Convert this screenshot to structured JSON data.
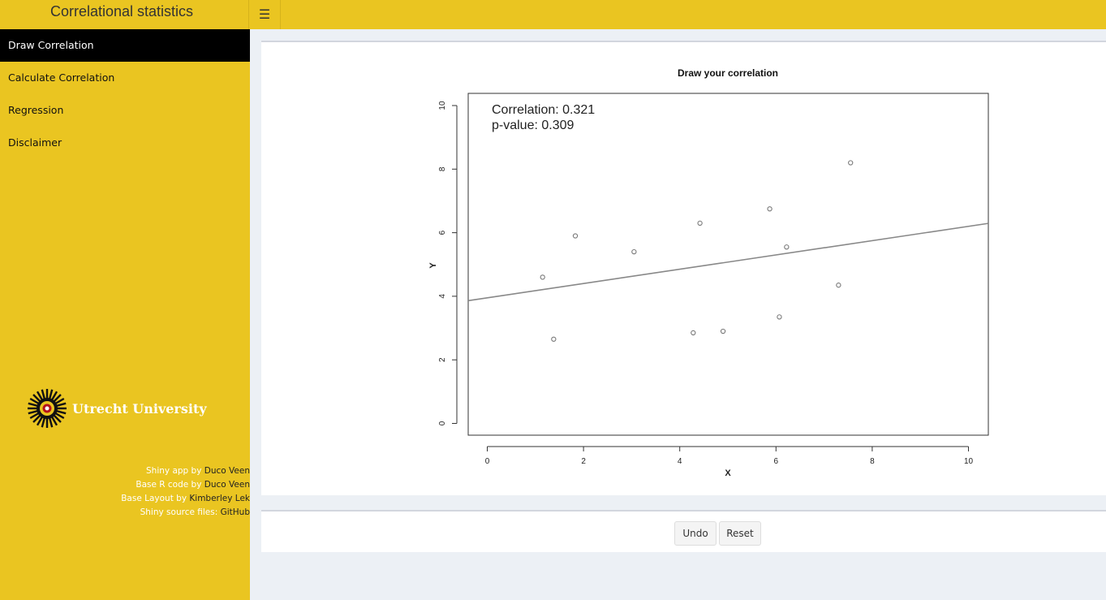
{
  "app": {
    "title": "Correlational statistics",
    "toggle_icon": "hamburger-icon"
  },
  "sidebar": {
    "items": [
      {
        "label": "Draw Correlation",
        "active": true
      },
      {
        "label": "Calculate Correlation",
        "active": false
      },
      {
        "label": "Regression",
        "active": false
      },
      {
        "label": "Disclaimer",
        "active": false
      }
    ],
    "logo_text": "Utrecht University",
    "credits": [
      {
        "prefix": "Shiny app by",
        "name": "Duco Veen"
      },
      {
        "prefix": "Base R code by",
        "name": "Duco Veen"
      },
      {
        "prefix": "Base Layout by",
        "name": "Kimberley Lek"
      },
      {
        "prefix": "Shiny source files:",
        "name": "GitHub"
      }
    ]
  },
  "plot": {
    "correlation_text": "Correlation: 0.321",
    "pvalue_text": "p-value: 0.309"
  },
  "chart_data": {
    "type": "scatter",
    "title": "Draw your correlation",
    "xlabel": "X",
    "ylabel": "Y",
    "xlim": [
      0,
      10
    ],
    "ylim": [
      0,
      10
    ],
    "xticks": [
      "0",
      "2",
      "4",
      "6",
      "8",
      "10"
    ],
    "yticks": [
      "0",
      "2",
      "4",
      "6",
      "8",
      "10"
    ],
    "points": [
      {
        "x": 1.15,
        "y": 4.6
      },
      {
        "x": 1.38,
        "y": 2.65
      },
      {
        "x": 1.83,
        "y": 5.9
      },
      {
        "x": 3.05,
        "y": 5.4
      },
      {
        "x": 4.28,
        "y": 2.85
      },
      {
        "x": 4.42,
        "y": 6.3
      },
      {
        "x": 4.9,
        "y": 2.9
      },
      {
        "x": 5.87,
        "y": 6.75
      },
      {
        "x": 6.07,
        "y": 3.35
      },
      {
        "x": 6.22,
        "y": 5.55
      },
      {
        "x": 7.3,
        "y": 4.35
      },
      {
        "x": 7.55,
        "y": 8.2
      }
    ],
    "regression_line": {
      "intercept": 3.95,
      "slope": 0.225
    },
    "grid": false,
    "legend": "none"
  },
  "buttons": {
    "undo": "Undo",
    "reset": "Reset"
  }
}
